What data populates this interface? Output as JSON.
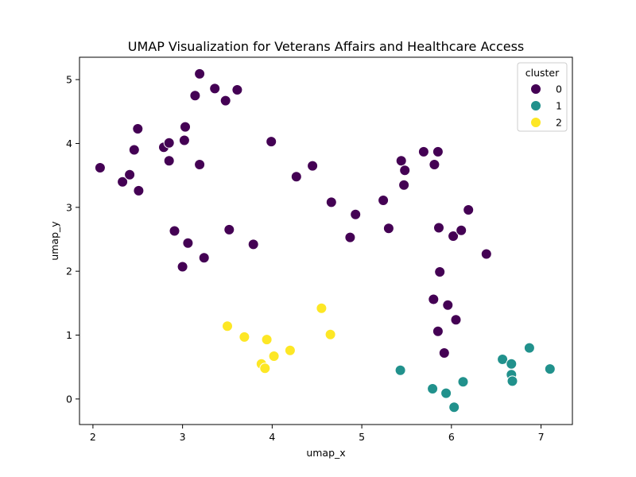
{
  "chart_data": {
    "type": "scatter",
    "title": "UMAP Visualization for Veterans Affairs and Healthcare Access",
    "xlabel": "umap_x",
    "ylabel": "umap_y",
    "xlim": [
      1.85,
      7.35
    ],
    "ylim": [
      -0.4,
      5.35
    ],
    "xticks": [
      2,
      3,
      4,
      5,
      6,
      7
    ],
    "yticks": [
      0,
      1,
      2,
      3,
      4,
      5
    ],
    "grid": false,
    "legend": {
      "title": "cluster",
      "placement": "top-right",
      "entries": [
        "0",
        "1",
        "2"
      ]
    },
    "series": [
      {
        "name": "0",
        "color": "#440154",
        "points": [
          [
            2.08,
            3.62
          ],
          [
            2.33,
            3.4
          ],
          [
            2.41,
            3.51
          ],
          [
            2.46,
            3.9
          ],
          [
            2.5,
            4.23
          ],
          [
            2.51,
            3.26
          ],
          [
            2.79,
            3.94
          ],
          [
            2.85,
            4.01
          ],
          [
            2.85,
            3.73
          ],
          [
            2.91,
            2.63
          ],
          [
            3.0,
            2.07
          ],
          [
            3.02,
            4.05
          ],
          [
            3.03,
            4.26
          ],
          [
            3.06,
            2.44
          ],
          [
            3.14,
            4.75
          ],
          [
            3.19,
            5.09
          ],
          [
            3.19,
            3.67
          ],
          [
            3.24,
            2.21
          ],
          [
            3.36,
            4.86
          ],
          [
            3.48,
            4.67
          ],
          [
            3.52,
            2.65
          ],
          [
            3.61,
            4.84
          ],
          [
            3.79,
            2.42
          ],
          [
            3.99,
            4.03
          ],
          [
            4.27,
            3.48
          ],
          [
            4.45,
            3.65
          ],
          [
            4.66,
            3.08
          ],
          [
            4.87,
            2.53
          ],
          [
            4.93,
            2.89
          ],
          [
            5.24,
            3.11
          ],
          [
            5.3,
            2.67
          ],
          [
            5.44,
            3.73
          ],
          [
            5.47,
            3.35
          ],
          [
            5.48,
            3.58
          ],
          [
            5.69,
            3.87
          ],
          [
            5.81,
            3.67
          ],
          [
            5.8,
            1.56
          ],
          [
            5.85,
            3.87
          ],
          [
            5.86,
            2.68
          ],
          [
            5.85,
            1.06
          ],
          [
            5.87,
            1.99
          ],
          [
            5.92,
            0.72
          ],
          [
            5.96,
            1.47
          ],
          [
            6.02,
            2.55
          ],
          [
            6.05,
            1.24
          ],
          [
            6.11,
            2.64
          ],
          [
            6.19,
            2.96
          ],
          [
            6.39,
            2.27
          ]
        ]
      },
      {
        "name": "1",
        "color": "#21918c",
        "points": [
          [
            5.43,
            0.45
          ],
          [
            5.79,
            0.16
          ],
          [
            5.94,
            0.09
          ],
          [
            6.03,
            -0.13
          ],
          [
            6.13,
            0.27
          ],
          [
            6.57,
            0.62
          ],
          [
            6.67,
            0.55
          ],
          [
            6.67,
            0.38
          ],
          [
            6.68,
            0.28
          ],
          [
            6.87,
            0.8
          ],
          [
            7.1,
            0.47
          ]
        ]
      },
      {
        "name": "2",
        "color": "#fde725",
        "points": [
          [
            3.5,
            1.14
          ],
          [
            3.69,
            0.97
          ],
          [
            3.88,
            0.55
          ],
          [
            3.92,
            0.48
          ],
          [
            3.94,
            0.93
          ],
          [
            4.02,
            0.67
          ],
          [
            4.2,
            0.76
          ],
          [
            4.55,
            1.42
          ],
          [
            4.65,
            1.01
          ]
        ]
      }
    ]
  }
}
